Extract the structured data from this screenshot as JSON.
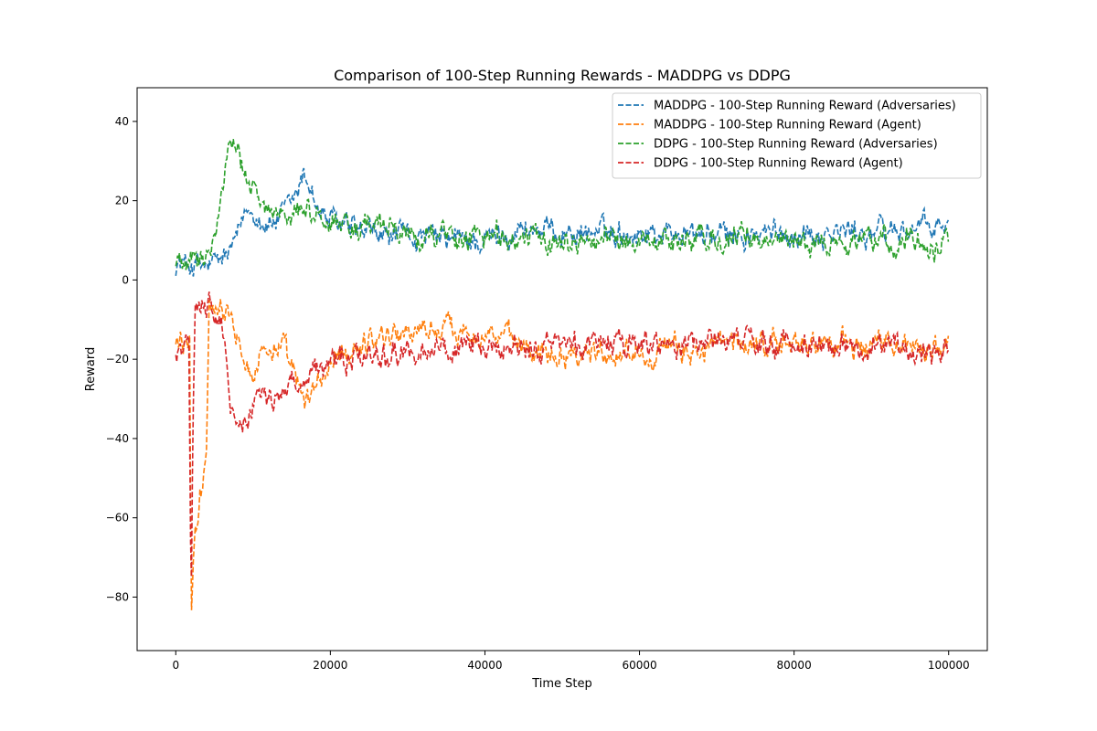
{
  "chart_data": {
    "type": "line",
    "title": "Comparison of 100-Step Running Rewards - MADDPG vs DDPG",
    "xlabel": "Time Step",
    "ylabel": "Reward",
    "xlim": [
      -5000,
      105000
    ],
    "ylim": [
      -93.5,
      48.5
    ],
    "x_ticks": [
      0,
      20000,
      40000,
      60000,
      80000,
      100000
    ],
    "x_tick_labels": [
      "0",
      "20000",
      "40000",
      "60000",
      "80000",
      "100000"
    ],
    "y_ticks": [
      -80,
      -60,
      -40,
      -20,
      0,
      20,
      40
    ],
    "y_tick_labels": [
      "−80",
      "−60",
      "−40",
      "−20",
      "0",
      "20",
      "40"
    ],
    "grid": false,
    "legend_position": "top-right",
    "line_style": "dashed",
    "series": [
      {
        "name": "MADDPG - 100-Step Running Reward (Adversaries)",
        "color": "#1f77b4",
        "noise": 2.2,
        "points": [
          [
            0,
            4
          ],
          [
            2000,
            4
          ],
          [
            4000,
            3
          ],
          [
            6000,
            5
          ],
          [
            7000,
            7
          ],
          [
            8000,
            10
          ],
          [
            9000,
            17
          ],
          [
            10000,
            18
          ],
          [
            11000,
            15
          ],
          [
            12000,
            14
          ],
          [
            14000,
            16
          ],
          [
            15500,
            21
          ],
          [
            16500,
            26
          ],
          [
            17500,
            24
          ],
          [
            18500,
            17
          ],
          [
            20000,
            15
          ],
          [
            23000,
            12
          ],
          [
            26000,
            11
          ],
          [
            30000,
            11
          ],
          [
            35000,
            10
          ],
          [
            40000,
            10
          ],
          [
            45000,
            13
          ],
          [
            50000,
            12
          ],
          [
            55000,
            12
          ],
          [
            60000,
            12
          ],
          [
            65000,
            12
          ],
          [
            70000,
            11
          ],
          [
            75000,
            11
          ],
          [
            80000,
            12
          ],
          [
            85000,
            12
          ],
          [
            90000,
            12
          ],
          [
            95000,
            13
          ],
          [
            100000,
            13
          ]
        ]
      },
      {
        "name": "MADDPG - 100-Step Running Reward (Agent)",
        "color": "#ff7f0e",
        "noise": 2.2,
        "points": [
          [
            0,
            -16
          ],
          [
            1800,
            -15
          ],
          [
            2000,
            -85
          ],
          [
            2300,
            -68
          ],
          [
            2800,
            -60
          ],
          [
            3500,
            -50
          ],
          [
            4000,
            -42
          ],
          [
            4300,
            -6
          ],
          [
            5000,
            -5
          ],
          [
            6000,
            -5
          ],
          [
            7000,
            -7
          ],
          [
            8000,
            -12
          ],
          [
            9000,
            -18
          ],
          [
            10000,
            -25
          ],
          [
            11000,
            -18
          ],
          [
            12000,
            -17
          ],
          [
            14000,
            -18
          ],
          [
            16000,
            -28
          ],
          [
            17000,
            -32
          ],
          [
            18000,
            -27
          ],
          [
            20000,
            -22
          ],
          [
            23000,
            -17
          ],
          [
            26000,
            -14
          ],
          [
            30000,
            -13
          ],
          [
            35000,
            -12
          ],
          [
            40000,
            -13
          ],
          [
            45000,
            -17
          ],
          [
            50000,
            -18
          ],
          [
            55000,
            -18
          ],
          [
            60000,
            -18
          ],
          [
            65000,
            -18
          ],
          [
            70000,
            -17
          ],
          [
            75000,
            -16
          ],
          [
            80000,
            -16
          ],
          [
            85000,
            -16
          ],
          [
            90000,
            -17
          ],
          [
            95000,
            -16
          ],
          [
            100000,
            -17
          ]
        ]
      },
      {
        "name": "DDPG - 100-Step Running Reward (Adversaries)",
        "color": "#2ca02c",
        "noise": 2.2,
        "points": [
          [
            0,
            5
          ],
          [
            3000,
            4
          ],
          [
            4500,
            8
          ],
          [
            5500,
            18
          ],
          [
            6500,
            29
          ],
          [
            7500,
            33
          ],
          [
            8500,
            29
          ],
          [
            9500,
            24
          ],
          [
            10500,
            22
          ],
          [
            11500,
            18
          ],
          [
            13000,
            17
          ],
          [
            14500,
            19
          ],
          [
            16000,
            18
          ],
          [
            18000,
            16
          ],
          [
            20000,
            15
          ],
          [
            23000,
            14
          ],
          [
            26000,
            13
          ],
          [
            30000,
            12
          ],
          [
            35000,
            11
          ],
          [
            40000,
            11
          ],
          [
            45000,
            10
          ],
          [
            50000,
            10
          ],
          [
            55000,
            10
          ],
          [
            60000,
            10
          ],
          [
            65000,
            10
          ],
          [
            70000,
            10
          ],
          [
            75000,
            10
          ],
          [
            80000,
            10
          ],
          [
            85000,
            9
          ],
          [
            90000,
            10
          ],
          [
            95000,
            10
          ],
          [
            100000,
            10
          ]
        ]
      },
      {
        "name": "DDPG - 100-Step Running Reward (Agent)",
        "color": "#d62728",
        "noise": 2.2,
        "points": [
          [
            0,
            -17
          ],
          [
            1700,
            -16
          ],
          [
            2000,
            -85
          ],
          [
            2200,
            -40
          ],
          [
            2500,
            -8
          ],
          [
            3500,
            -6
          ],
          [
            4500,
            -6
          ],
          [
            5500,
            -7
          ],
          [
            6500,
            -18
          ],
          [
            7000,
            -33
          ],
          [
            8000,
            -36
          ],
          [
            9000,
            -35
          ],
          [
            10000,
            -32
          ],
          [
            11000,
            -29
          ],
          [
            12500,
            -30
          ],
          [
            14000,
            -28
          ],
          [
            16000,
            -25
          ],
          [
            18000,
            -22
          ],
          [
            20000,
            -22
          ],
          [
            23000,
            -20
          ],
          [
            26000,
            -19
          ],
          [
            30000,
            -18
          ],
          [
            35000,
            -18
          ],
          [
            40000,
            -18
          ],
          [
            45000,
            -18
          ],
          [
            50000,
            -16
          ],
          [
            55000,
            -16
          ],
          [
            60000,
            -16
          ],
          [
            65000,
            -16
          ],
          [
            70000,
            -15
          ],
          [
            75000,
            -16
          ],
          [
            80000,
            -16
          ],
          [
            85000,
            -16
          ],
          [
            90000,
            -17
          ],
          [
            95000,
            -17
          ],
          [
            100000,
            -17
          ]
        ]
      }
    ]
  }
}
